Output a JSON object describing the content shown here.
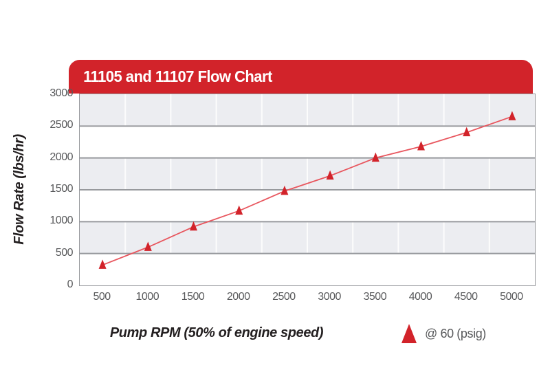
{
  "header": {
    "title": "11105 and 11107 Flow Chart"
  },
  "chart_data": {
    "type": "line",
    "x": [
      500,
      1000,
      1500,
      2000,
      2500,
      3000,
      3500,
      4000,
      4500,
      5000
    ],
    "series": [
      {
        "name": "@ 60 (psig)",
        "marker": "triangle",
        "values": [
          320,
          600,
          920,
          1170,
          1480,
          1720,
          2000,
          2180,
          2400,
          2650
        ]
      }
    ],
    "title": "11105 and 11107 Flow Chart",
    "xlabel": "Pump RPM (50% of engine speed)",
    "ylabel": "Flow Rate (lbs/hr)",
    "ylim": [
      0,
      3000
    ],
    "ytick_step": 500,
    "xtick_labels": [
      "500",
      "1000",
      "1500",
      "2000",
      "2500",
      "3000",
      "3500",
      "4000",
      "4500",
      "5000"
    ],
    "ytick_labels": [
      "0",
      "500",
      "1000",
      "1500",
      "2000",
      "2500",
      "3000"
    ],
    "grid": "alternating-horizontal-bands",
    "legend_position": "bottom-right"
  },
  "legend": {
    "label": "@ 60 (psig)"
  },
  "colors": {
    "brand_red": "#d2232a",
    "line_red": "#e8565e",
    "band_gray": "#ecedf1",
    "gridline_gray": "#97999d",
    "vertical_gridline_white": "#ffffff",
    "tick_text": "#58595b",
    "axis_title_text": "#231f20",
    "banner_text": "#ffffff",
    "background": "#ffffff"
  }
}
